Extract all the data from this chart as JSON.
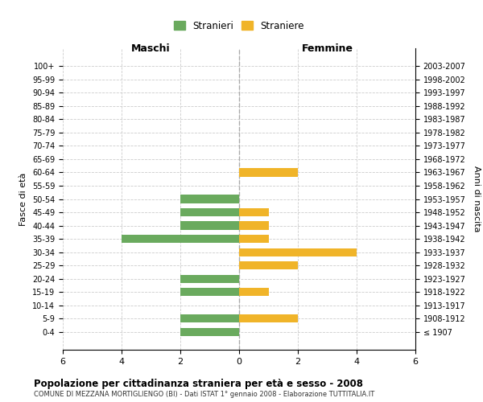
{
  "age_groups": [
    "100+",
    "95-99",
    "90-94",
    "85-89",
    "80-84",
    "75-79",
    "70-74",
    "65-69",
    "60-64",
    "55-59",
    "50-54",
    "45-49",
    "40-44",
    "35-39",
    "30-34",
    "25-29",
    "20-24",
    "15-19",
    "10-14",
    "5-9",
    "0-4"
  ],
  "birth_years": [
    "≤ 1907",
    "1908-1912",
    "1913-1917",
    "1918-1922",
    "1923-1927",
    "1928-1932",
    "1933-1937",
    "1938-1942",
    "1943-1947",
    "1948-1952",
    "1953-1957",
    "1958-1962",
    "1963-1967",
    "1968-1972",
    "1973-1977",
    "1978-1982",
    "1983-1987",
    "1988-1992",
    "1993-1997",
    "1998-2002",
    "2003-2007"
  ],
  "maschi": [
    0,
    0,
    0,
    0,
    0,
    0,
    0,
    0,
    0,
    0,
    2,
    2,
    2,
    4,
    0,
    0,
    2,
    2,
    0,
    2,
    2
  ],
  "femmine": [
    0,
    0,
    0,
    0,
    0,
    0,
    0,
    0,
    2,
    0,
    0,
    1,
    1,
    1,
    4,
    2,
    0,
    1,
    0,
    2,
    0
  ],
  "color_maschi": "#6aaa5e",
  "color_femmine": "#f0b429",
  "background_color": "#ffffff",
  "grid_color": "#cccccc",
  "title": "Popolazione per cittadinanza straniera per età e sesso - 2008",
  "subtitle": "COMUNE DI MEZZANA MORTIGLIENGO (BI) - Dati ISTAT 1° gennaio 2008 - Elaborazione TUTTITALIA.IT",
  "ylabel_left": "Fasce di età",
  "ylabel_right": "Anni di nascita",
  "xlabel_maschi": "Maschi",
  "xlabel_femmine": "Femmine",
  "legend_maschi": "Stranieri",
  "legend_femmine": "Straniere",
  "xlim": 6
}
